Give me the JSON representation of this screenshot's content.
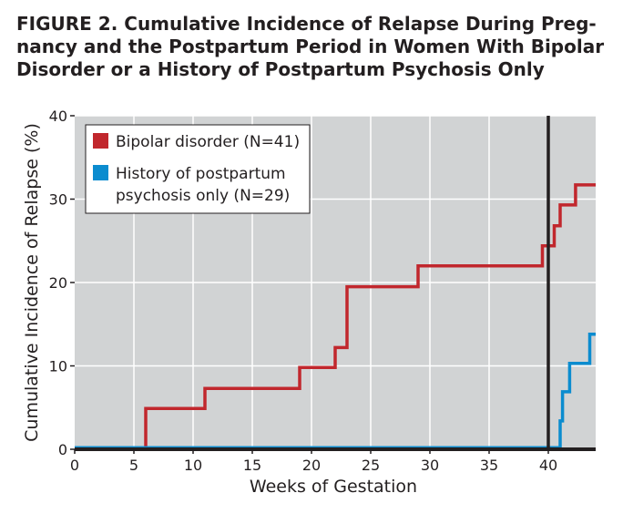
{
  "figure": {
    "title_lines": [
      "FIGURE 2. Cumulative Incidence of Relapse During Preg-",
      "nancy and the Postpartum Period in Women With Bipolar",
      "Disorder or a History of Postpartum Psychosis Only"
    ]
  },
  "chart_data": {
    "type": "line",
    "step": true,
    "xlabel": "Weeks of Gestation",
    "ylabel": "Cumulative Incidence of Relapse (%)",
    "xlim": [
      0,
      44
    ],
    "ylim": [
      0,
      40
    ],
    "xticks": [
      0,
      5,
      10,
      15,
      20,
      25,
      30,
      35,
      40
    ],
    "yticks": [
      0,
      10,
      20,
      30,
      40
    ],
    "grid": true,
    "background": "#d1d3d4",
    "vertical_line": {
      "x": 40,
      "color": "#231f20"
    },
    "legend_position": "top-left",
    "series": [
      {
        "name": "Bipolar disorder (N=41)",
        "color": "#c1272d",
        "points": [
          [
            0,
            0
          ],
          [
            6,
            0
          ],
          [
            6,
            4.9
          ],
          [
            11,
            4.9
          ],
          [
            11,
            7.3
          ],
          [
            19,
            7.3
          ],
          [
            19,
            9.8
          ],
          [
            22,
            9.8
          ],
          [
            22,
            12.2
          ],
          [
            23,
            12.2
          ],
          [
            23,
            19.5
          ],
          [
            29,
            19.5
          ],
          [
            29,
            22.0
          ],
          [
            39.5,
            22.0
          ],
          [
            39.5,
            24.4
          ],
          [
            40.5,
            24.4
          ],
          [
            40.5,
            26.8
          ],
          [
            41,
            26.8
          ],
          [
            41,
            29.3
          ],
          [
            42.3,
            29.3
          ],
          [
            42.3,
            31.7
          ],
          [
            44,
            31.7
          ]
        ]
      },
      {
        "name": "History of postpartum psychosis only (N=29)",
        "legend_lines": [
          "History of postpartum",
          "psychosis only (N=29)"
        ],
        "color": "#0b8ccf",
        "points": [
          [
            0,
            0.2
          ],
          [
            41,
            0.2
          ],
          [
            41,
            3.4
          ],
          [
            41.2,
            3.4
          ],
          [
            41.2,
            6.9
          ],
          [
            41.8,
            6.9
          ],
          [
            41.8,
            10.3
          ],
          [
            43.5,
            10.3
          ],
          [
            43.5,
            13.8
          ],
          [
            44,
            13.8
          ]
        ]
      }
    ]
  }
}
